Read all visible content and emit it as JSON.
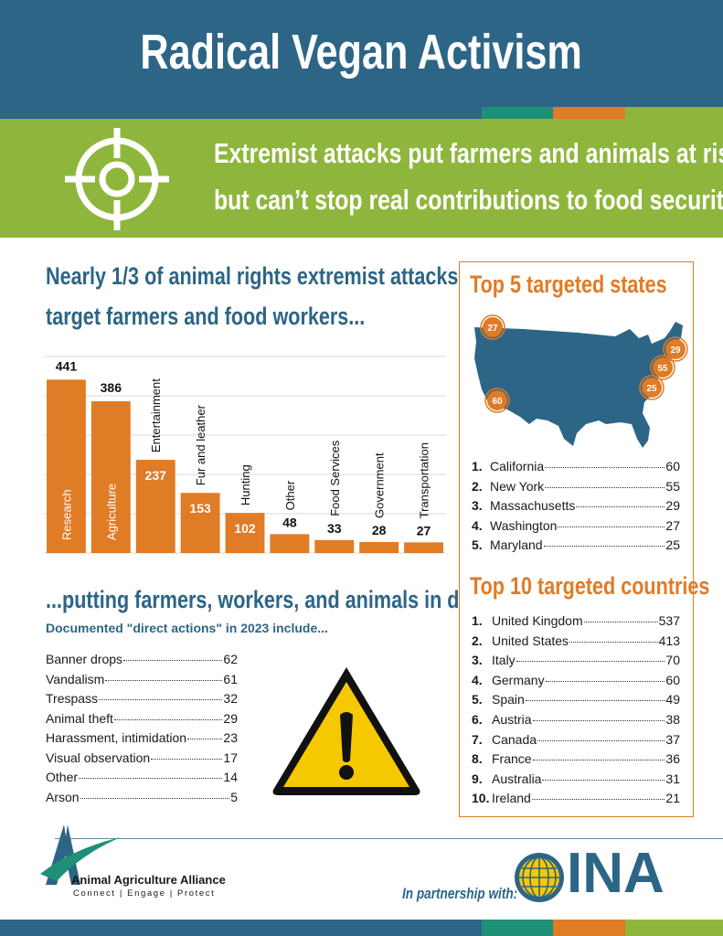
{
  "header": {
    "title": "Radical Vegan Activism",
    "subtitle_line1": "Extremist attacks put farmers and animals at risk",
    "subtitle_line2": "but can’t stop real contributions to food security",
    "target_icon": "crosshair-icon"
  },
  "colors": {
    "navy": "#2d6586",
    "green": "#8fb63c",
    "orange": "#e07b26",
    "teal": "#1f9078",
    "warning_yellow": "#f5c800"
  },
  "attacks_section": {
    "heading_line1": "Nearly 1/3 of animal rights extremist attacks",
    "heading_line2": "target farmers and food workers..."
  },
  "chart_data": {
    "type": "bar",
    "categories": [
      "Research",
      "Agriculture",
      "Entertainment",
      "Fur and leather",
      "Hunting",
      "Other",
      "Food Services",
      "Government",
      "Transportation"
    ],
    "values": [
      441,
      386,
      237,
      153,
      102,
      48,
      33,
      28,
      27
    ],
    "ylim": [
      0,
      500
    ],
    "grid": true,
    "bar_color": "#e07b26"
  },
  "danger_section": {
    "heading": "...putting farmers, workers, and animals in danger",
    "subheading": "Documented \"direct actions\" in 2023 include...",
    "warning_icon": "warning-triangle-icon",
    "actions": [
      {
        "label": "Banner drops",
        "value": "62"
      },
      {
        "label": "Vandalism",
        "value": "61"
      },
      {
        "label": "Trespass",
        "value": "32"
      },
      {
        "label": "Animal theft",
        "value": "29"
      },
      {
        "label": "Harassment, intimidation",
        "value": "23"
      },
      {
        "label": "Visual observation",
        "value": "17"
      },
      {
        "label": "Other",
        "value": "14"
      },
      {
        "label": "Arson",
        "value": "5"
      }
    ]
  },
  "states_section": {
    "heading": "Top 5 targeted states",
    "map_markers": [
      "27",
      "60",
      "29",
      "55",
      "25"
    ],
    "states": [
      {
        "rank": "1.",
        "name": "California",
        "value": "60"
      },
      {
        "rank": "2.",
        "name": "New York",
        "value": "55"
      },
      {
        "rank": "3.",
        "name": "Massachusetts",
        "value": "29"
      },
      {
        "rank": "4.",
        "name": "Washington",
        "value": "27"
      },
      {
        "rank": "5.",
        "name": "Maryland",
        "value": "25"
      }
    ]
  },
  "countries_section": {
    "heading": "Top 10 targeted countries",
    "countries": [
      {
        "rank": "1.",
        "name": "United Kingdom",
        "value": "537"
      },
      {
        "rank": "2.",
        "name": "United States",
        "value": "413"
      },
      {
        "rank": "3.",
        "name": "Italy",
        "value": "70"
      },
      {
        "rank": "4.",
        "name": "Germany",
        "value": "60"
      },
      {
        "rank": "5.",
        "name": "Spain",
        "value": "49"
      },
      {
        "rank": "6.",
        "name": "Austria",
        "value": "38"
      },
      {
        "rank": "7.",
        "name": "Canada",
        "value": "37"
      },
      {
        "rank": "8.",
        "name": "France",
        "value": "36"
      },
      {
        "rank": "9.",
        "name": "Australia",
        "value": "31"
      },
      {
        "rank": "10.",
        "name": "Ireland",
        "value": "21"
      }
    ]
  },
  "footer": {
    "alliance_name": "Animal Agriculture Alliance",
    "alliance_tagline": "Connect | Engage | Protect",
    "partnership_label": "In partnership with:",
    "partner_name": "INA",
    "partner_logo_icon": "globe-icon"
  }
}
